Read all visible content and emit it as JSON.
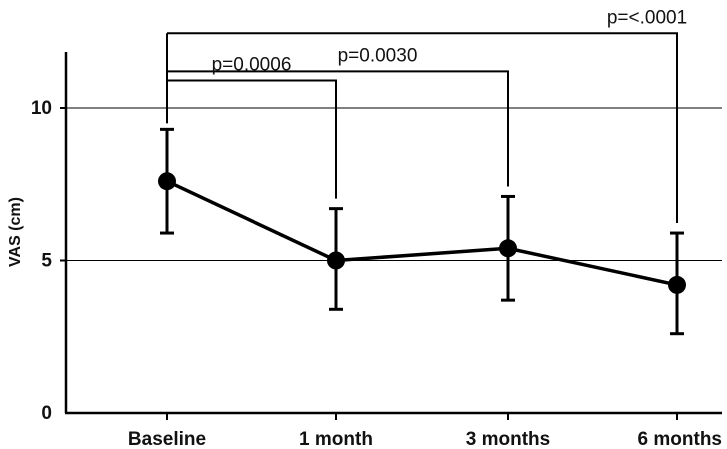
{
  "chart_data": {
    "type": "line",
    "title": "",
    "xlabel": "",
    "ylabel": "VAS (cm)",
    "categories": [
      "Baseline",
      "1 month",
      "3 months",
      "6 months"
    ],
    "series": [
      {
        "values": [
          7.6,
          5.0,
          5.4,
          4.2
        ],
        "error_low": [
          5.9,
          3.4,
          3.7,
          2.6
        ],
        "error_high": [
          9.3,
          6.7,
          7.1,
          5.9
        ]
      }
    ],
    "ylim": [
      0,
      11.8
    ],
    "yticks": [
      0,
      5,
      10
    ],
    "ytick_labels": [
      "0",
      "5",
      "10"
    ],
    "gridlines_y": [
      5,
      10
    ],
    "comparisons": [
      {
        "from": 0,
        "to": 1,
        "label": "p=0.0006",
        "level": 10.9
      },
      {
        "from": 0,
        "to": 2,
        "label": "p=0.0030",
        "level": 11.2
      },
      {
        "from": 0,
        "to": 3,
        "label": "p=<.0001",
        "level": 12.45
      }
    ],
    "colors": {
      "line": "#000000",
      "grid": "#000000"
    }
  }
}
